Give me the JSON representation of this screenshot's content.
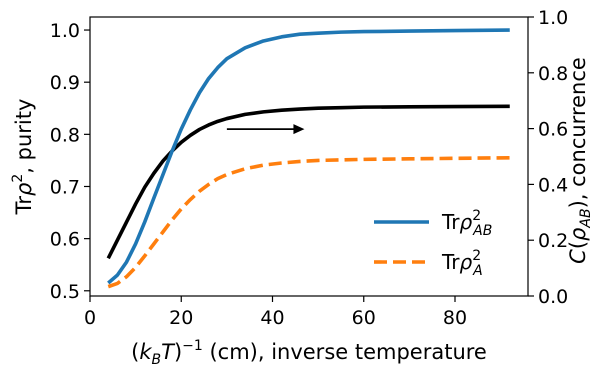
{
  "chart_data": {
    "type": "line",
    "xlabel": "(k_BT)^-1 (cm), inverse temperature",
    "ylabel_left": "Trρ², purity",
    "ylabel_right": "C(ρ_AB), concurrence",
    "xlim": [
      0,
      96
    ],
    "ylim_left": [
      0.49,
      1.025
    ],
    "ylim_right": [
      0.0,
      1.0
    ],
    "x_ticks": [
      0,
      20,
      40,
      60,
      80
    ],
    "y_left_ticks": [
      0.5,
      0.6,
      0.7,
      0.8,
      0.9,
      1.0
    ],
    "y_right_ticks": [
      0.0,
      0.2,
      0.4,
      0.6,
      0.8,
      1.0
    ],
    "grid": false,
    "legend_position": "lower-right",
    "series": [
      {
        "name": "Trρ²_AB",
        "axis": "left",
        "color": "#1f77b4",
        "style": "solid",
        "x": [
          4,
          6,
          8,
          10,
          12,
          14,
          16,
          18,
          20,
          22,
          24,
          26,
          28,
          30,
          34,
          38,
          42,
          46,
          50,
          55,
          60,
          70,
          80,
          92
        ],
        "y": [
          0.515,
          0.53,
          0.555,
          0.59,
          0.632,
          0.678,
          0.723,
          0.768,
          0.81,
          0.847,
          0.88,
          0.907,
          0.928,
          0.945,
          0.966,
          0.979,
          0.987,
          0.992,
          0.994,
          0.996,
          0.997,
          0.998,
          0.999,
          1.0
        ]
      },
      {
        "name": "Trρ²_A",
        "axis": "left",
        "color": "#ff7f0e",
        "style": "dashed",
        "x": [
          4,
          6,
          8,
          10,
          12,
          14,
          16,
          18,
          20,
          22,
          24,
          26,
          28,
          30,
          34,
          38,
          42,
          46,
          50,
          55,
          60,
          70,
          80,
          92
        ],
        "y": [
          0.508,
          0.514,
          0.527,
          0.545,
          0.567,
          0.59,
          0.613,
          0.636,
          0.657,
          0.675,
          0.691,
          0.704,
          0.715,
          0.723,
          0.734,
          0.741,
          0.745,
          0.748,
          0.75,
          0.751,
          0.752,
          0.753,
          0.754,
          0.755
        ]
      },
      {
        "name": "",
        "axis": "right",
        "color": "#000000",
        "style": "solid",
        "x": [
          4,
          6,
          8,
          10,
          12,
          14,
          16,
          18,
          20,
          22,
          24,
          26,
          28,
          30,
          34,
          38,
          42,
          46,
          50,
          55,
          60,
          70,
          80,
          92
        ],
        "y": [
          0.135,
          0.2,
          0.265,
          0.33,
          0.39,
          0.44,
          0.484,
          0.52,
          0.551,
          0.576,
          0.597,
          0.613,
          0.626,
          0.636,
          0.651,
          0.66,
          0.666,
          0.67,
          0.673,
          0.675,
          0.677,
          0.678,
          0.679,
          0.68
        ]
      }
    ],
    "annotations": [
      {
        "type": "arrow",
        "from": [
          30,
          0.81
        ],
        "to": [
          47,
          0.81
        ],
        "axis": "left",
        "direction": "right"
      }
    ]
  }
}
